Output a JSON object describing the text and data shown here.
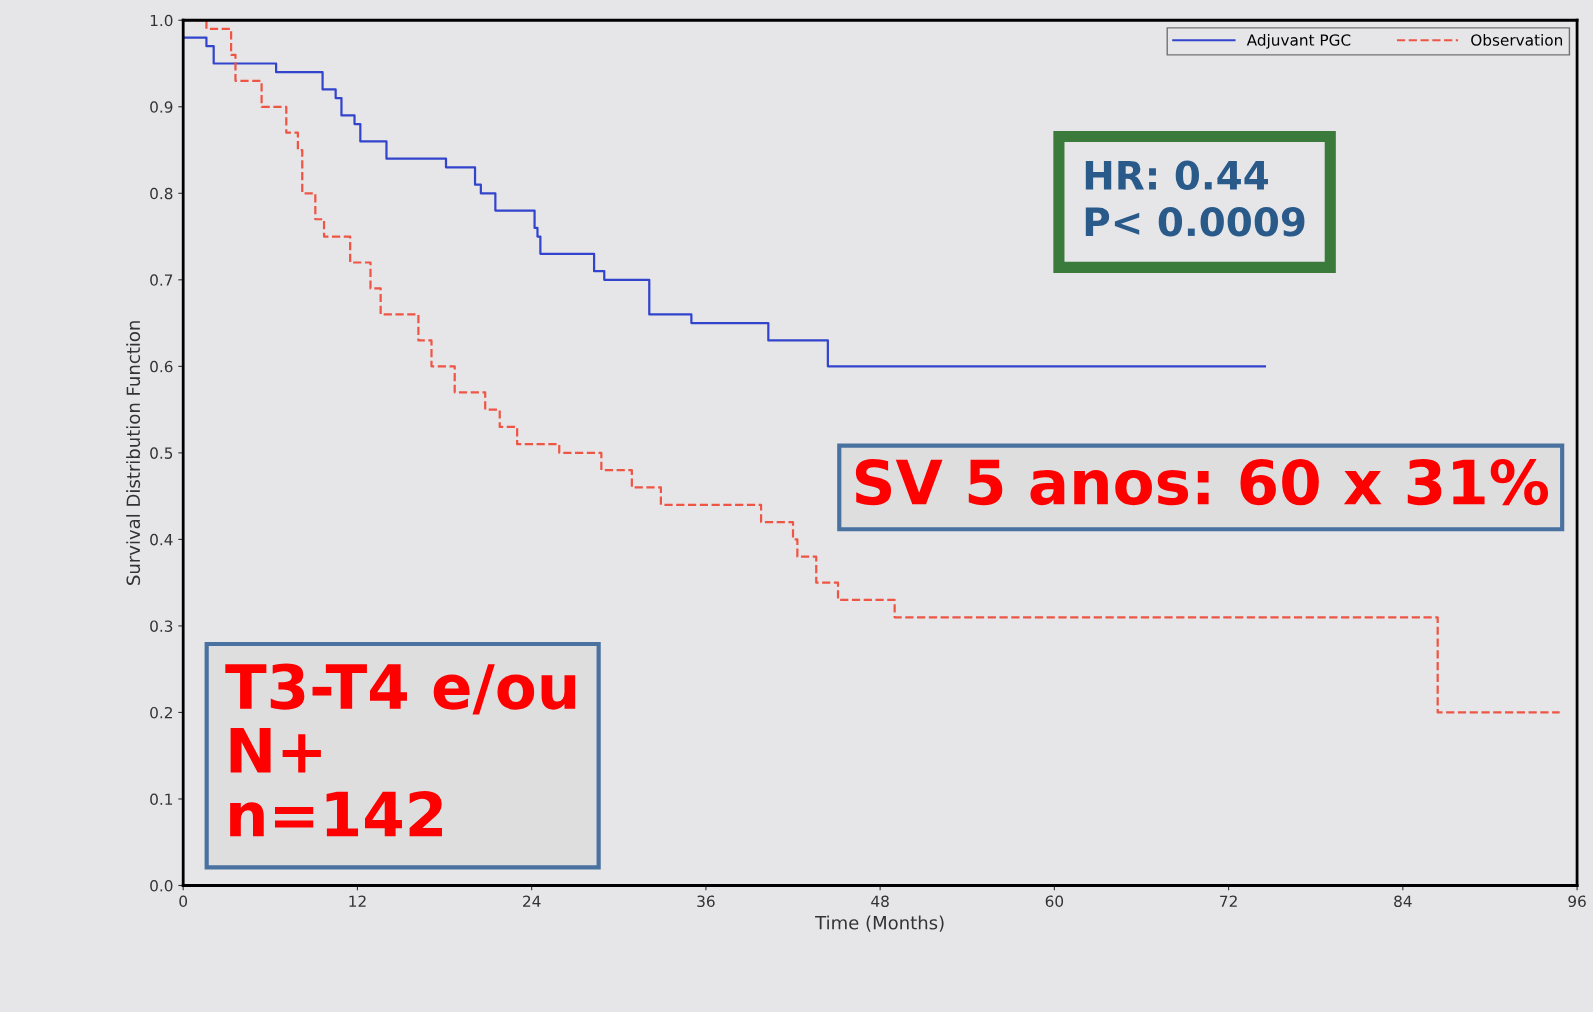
{
  "chart_data": {
    "type": "step",
    "xlabel": "Time (Months)",
    "ylabel": "Survival Distribution Function",
    "xlim": [
      0,
      96
    ],
    "xticks": [
      0,
      12,
      24,
      36,
      48,
      60,
      72,
      84,
      96
    ],
    "ylim": [
      0,
      1
    ],
    "yticks": [
      {
        "value": 0,
        "label": "0.0"
      },
      {
        "value": 0.1,
        "label": "0.1"
      },
      {
        "value": 0.2,
        "label": "0.2"
      },
      {
        "value": 0.3,
        "label": "0.3"
      },
      {
        "value": 0.4,
        "label": "0.4"
      },
      {
        "value": 0.5,
        "label": "0.5"
      },
      {
        "value": 0.6,
        "label": "0.6"
      },
      {
        "value": 0.7,
        "label": "0.7"
      },
      {
        "value": 0.8,
        "label": "0.8"
      },
      {
        "value": 0.9,
        "label": "0.9"
      },
      {
        "value": 1,
        "label": "1.0"
      }
    ],
    "grid": false,
    "legend": "top right",
    "series": [
      {
        "name": "Adjuvant PGC",
        "color": "#3344cc",
        "line_style": "solid",
        "x": [
          0,
          1.6,
          2.1,
          6.4,
          9.6,
          10.5,
          10.9,
          11.8,
          12.2,
          14.0,
          18.1,
          20.1,
          20.5,
          21.5,
          24.2,
          24.4,
          24.6,
          28.3,
          29.0,
          32.1,
          35.0,
          40.3,
          44.4,
          74.5
        ],
        "values": [
          0.98,
          0.97,
          0.95,
          0.94,
          0.92,
          0.91,
          0.89,
          0.88,
          0.86,
          0.84,
          0.83,
          0.81,
          0.8,
          0.78,
          0.76,
          0.75,
          0.73,
          0.71,
          0.7,
          0.66,
          0.65,
          0.63,
          0.6,
          0.6
        ]
      },
      {
        "name": "Observation",
        "color": "#ee5544",
        "line_style": "dashed",
        "x": [
          0,
          1.6,
          3.3,
          3.6,
          5.4,
          7.1,
          7.9,
          8.2,
          9.1,
          9.7,
          11.5,
          12.9,
          13.6,
          16.2,
          17.1,
          18.7,
          20.8,
          21.8,
          23.0,
          25.9,
          28.8,
          30.9,
          32.9,
          39.8,
          42.0,
          42.3,
          43.6,
          45.1,
          49.0,
          86.4,
          94.8
        ],
        "values": [
          1.0,
          0.99,
          0.96,
          0.93,
          0.9,
          0.87,
          0.85,
          0.8,
          0.77,
          0.75,
          0.72,
          0.69,
          0.66,
          0.63,
          0.6,
          0.57,
          0.55,
          0.53,
          0.51,
          0.5,
          0.48,
          0.46,
          0.44,
          0.42,
          0.4,
          0.38,
          0.35,
          0.33,
          0.31,
          0.2,
          0.2
        ]
      }
    ],
    "annotations": [
      "HR: 0.44\nP< 0.0009",
      "SV 5 anos: 60 x 31%",
      "T3-T4 e/ou\nN+\nn=142"
    ]
  }
}
